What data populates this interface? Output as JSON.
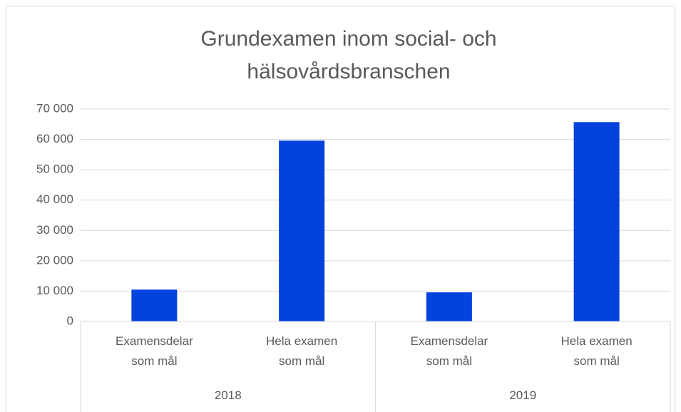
{
  "chart_data": {
    "type": "bar",
    "title": "Grundexamen inom social- och hälsovårdsbranschen",
    "groups": [
      "2018",
      "2019"
    ],
    "categories": [
      "Examensdelar som mål",
      "Hela examen som mål",
      "Examensdelar som mål",
      "Hela examen som mål"
    ],
    "values": [
      10500,
      59600,
      9600,
      65700
    ],
    "color": "#0342dc",
    "ylim": [
      0,
      70000
    ],
    "yticks": [
      0,
      {
        "value": 10000,
        "label": "10 000"
      },
      {
        "value": 20000,
        "label": "20 000"
      },
      {
        "value": 30000,
        "label": "30 000"
      },
      {
        "value": 40000,
        "label": "40 000"
      },
      {
        "value": 50000,
        "label": "50 000"
      },
      {
        "value": 60000,
        "label": "60 000"
      },
      {
        "value": 70000,
        "label": "70 000"
      }
    ],
    "grid": true
  }
}
